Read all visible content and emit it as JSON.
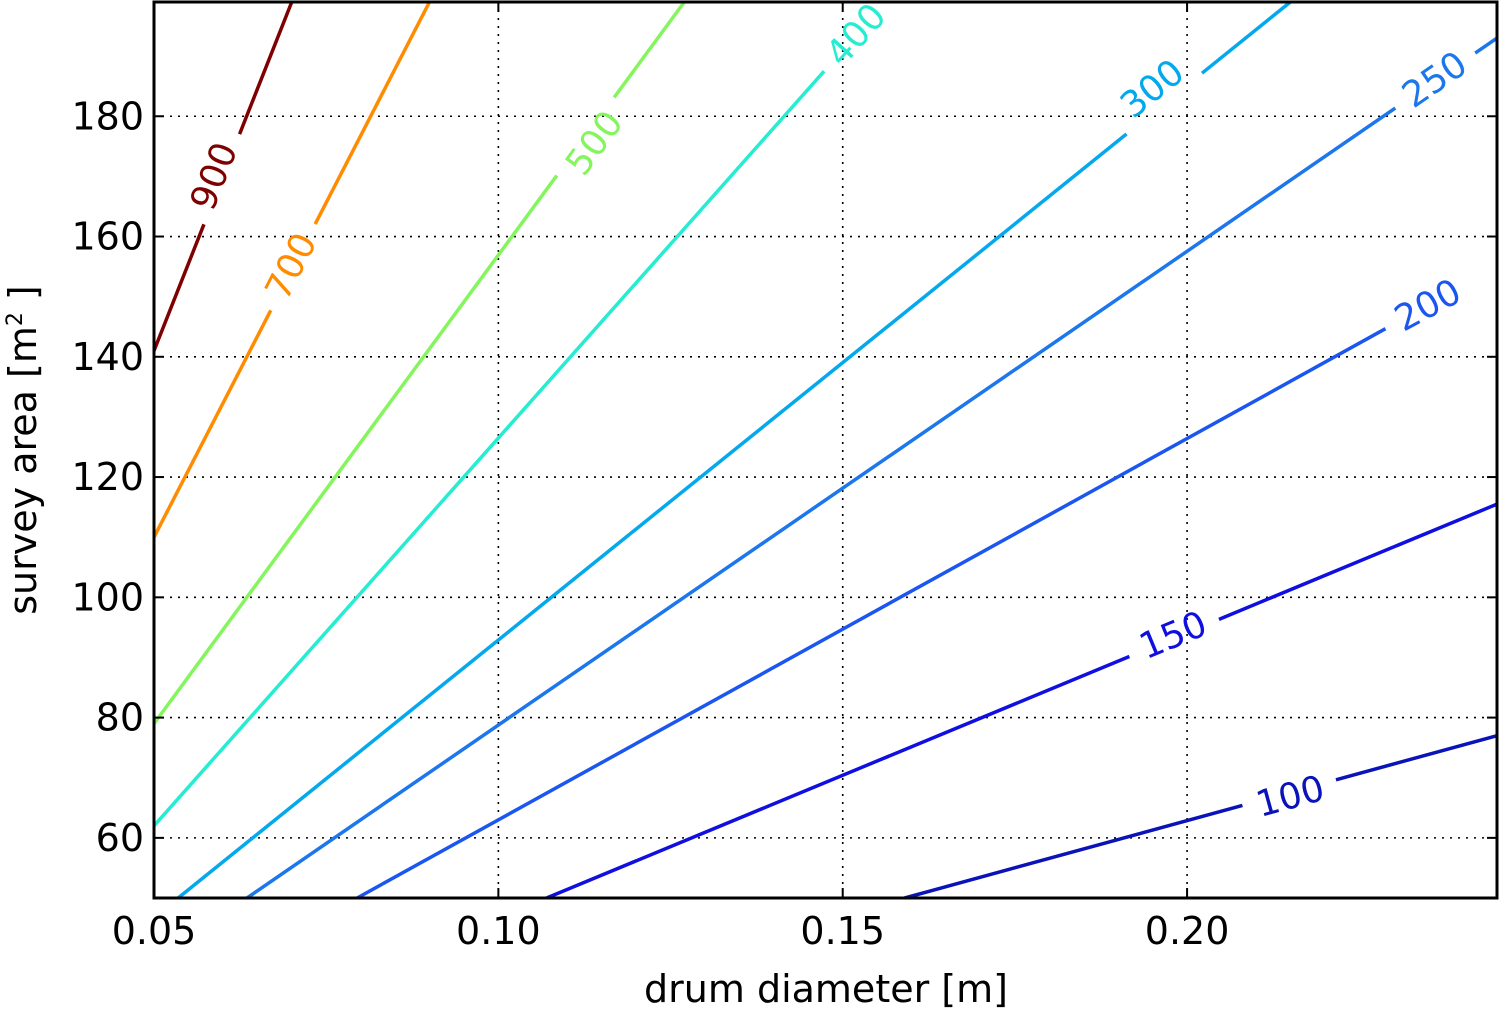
{
  "chart_data": {
    "type": "contour",
    "xlabel": "drum diameter [m]",
    "ylabel_main": "survey area [m",
    "ylabel_sup": "2",
    "ylabel_end": " ]",
    "xlim": [
      0.05,
      0.245
    ],
    "ylim": [
      50,
      199
    ],
    "xticks": [
      {
        "value": 0.05,
        "label": "0.05"
      },
      {
        "value": 0.1,
        "label": "0.10"
      },
      {
        "value": 0.15,
        "label": "0.15"
      },
      {
        "value": 0.2,
        "label": "0.20"
      }
    ],
    "yticks": [
      {
        "value": 60,
        "label": "60"
      },
      {
        "value": 80,
        "label": "80"
      },
      {
        "value": 100,
        "label": "100"
      },
      {
        "value": 120,
        "label": "120"
      },
      {
        "value": 140,
        "label": "140"
      },
      {
        "value": 160,
        "label": "160"
      },
      {
        "value": 180,
        "label": "180"
      }
    ],
    "grid": true,
    "levels": [
      {
        "label": "100",
        "color": "#0a13b8",
        "start": [
          0.159,
          50
        ],
        "end": [
          0.245,
          77.0
        ],
        "label_at": [
          0.215,
          66.8
        ]
      },
      {
        "label": "150",
        "color": "#0f0fe0",
        "start": [
          0.107,
          50
        ],
        "end": [
          0.245,
          115.5
        ],
        "label_at": [
          0.198,
          93.6
        ]
      },
      {
        "label": "200",
        "color": "#1b56f0",
        "start": [
          0.0795,
          50
        ],
        "end": [
          0.23,
          143.0
        ],
        "label_at": [
          0.235,
          148.5
        ]
      },
      {
        "label": "250",
        "color": "#1c76ec",
        "start": [
          0.0635,
          50
        ],
        "end": [
          0.245,
          193.0
        ],
        "label_at": [
          0.236,
          186.0
        ]
      },
      {
        "label": "300",
        "color": "#04a8ec",
        "start": [
          0.0535,
          50
        ],
        "end": [
          0.215,
          199.0
        ],
        "label_at": [
          0.195,
          184.5
        ]
      },
      {
        "label": "400",
        "color": "#26ecd2",
        "start": [
          0.05,
          62.0
        ],
        "end": [
          0.147,
          186.0
        ],
        "label_at": [
          0.152,
          193.5
        ]
      },
      {
        "label": "500",
        "color": "#84f55c",
        "start": [
          0.05,
          79.0
        ],
        "end": [
          0.127,
          199.0
        ],
        "label_at": [
          0.114,
          175.5
        ]
      },
      {
        "label": "700",
        "color": "#ff8c00",
        "start": [
          0.05,
          110.0
        ],
        "end": [
          0.09,
          199.0
        ],
        "label_at": [
          0.07,
          155.0
        ]
      },
      {
        "label": "900",
        "color": "#7f0000",
        "start": [
          0.05,
          141.0
        ],
        "end": [
          0.07,
          199.0
        ],
        "label_at": [
          0.0588,
          170.0
        ]
      }
    ]
  }
}
